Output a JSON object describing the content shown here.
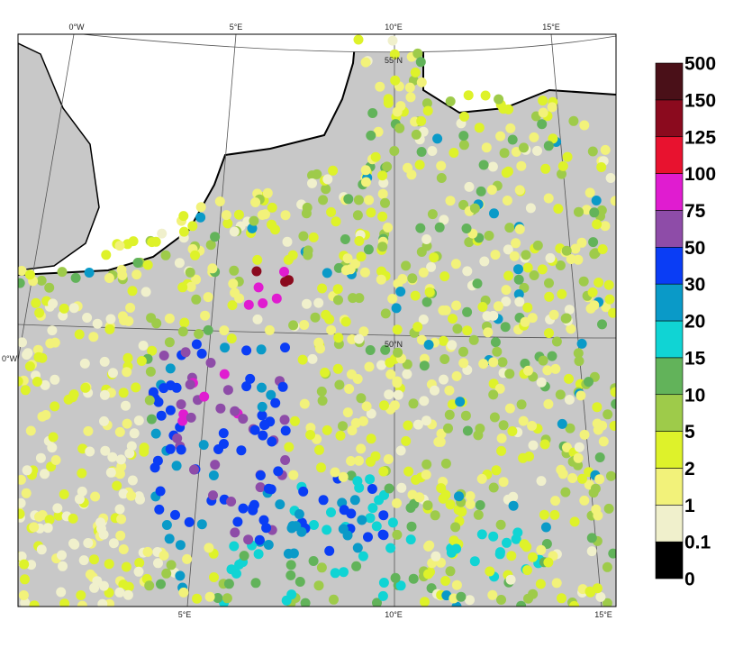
{
  "map": {
    "graticule_labels": {
      "top": [
        "0°W",
        "5°E",
        "10°E",
        "15°E"
      ],
      "bottom": [
        "5°E",
        "10°E",
        "15°E"
      ],
      "inner": [
        "55°N",
        "50°N"
      ],
      "left": [
        "0°W"
      ]
    }
  },
  "colorbar": {
    "levels": [
      0,
      0.1,
      1,
      2,
      5,
      10,
      15,
      20,
      30,
      50,
      75,
      100,
      125,
      150,
      500
    ],
    "colors": [
      "#000000",
      "#f0f0cc",
      "#f2f27a",
      "#def22a",
      "#9ecb4a",
      "#62b35a",
      "#10d4d4",
      "#0a9ac8",
      "#0a3df5",
      "#8e4ca8",
      "#e01cd0",
      "#e8122f",
      "#8b0a1e",
      "#4a1018"
    ]
  }
}
